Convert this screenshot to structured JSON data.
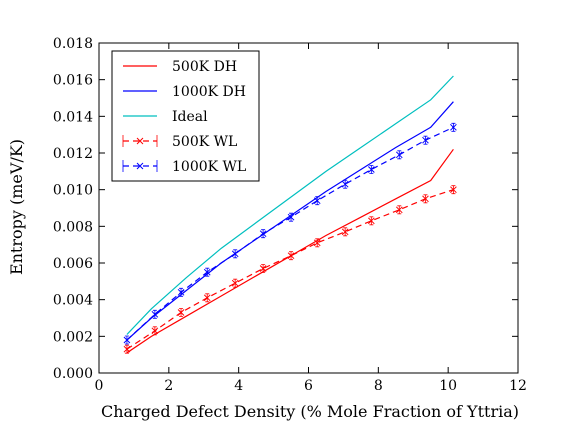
{
  "chart_data": {
    "type": "line",
    "title": "",
    "xlabel": "Charged Defect Density (% Mole Fraction of Yttria)",
    "ylabel": "Entropy (meV/K)",
    "xlim": [
      0,
      12
    ],
    "ylim": [
      0.0,
      0.018
    ],
    "xticks": [
      0,
      2,
      4,
      6,
      8,
      10,
      12
    ],
    "yticks": [
      0.0,
      0.002,
      0.004,
      0.006,
      0.008,
      0.01,
      0.012,
      0.014,
      0.016,
      0.018
    ],
    "xtick_labels": [
      "0",
      "2",
      "4",
      "6",
      "8",
      "10",
      "12"
    ],
    "ytick_labels": [
      "0.000",
      "0.002",
      "0.004",
      "0.006",
      "0.008",
      "0.010",
      "0.012",
      "0.014",
      "0.016",
      "0.018"
    ],
    "grid": false,
    "legend_position": "top-left",
    "series": [
      {
        "name": "500K DH",
        "color": "#ff0000",
        "style": "solid",
        "x": [
          0.8,
          1.5,
          2.5,
          3.5,
          4.5,
          5.5,
          6.5,
          7.5,
          8.5,
          9.5,
          10.15
        ],
        "y": [
          0.0011,
          0.002,
          0.0031,
          0.0042,
          0.0053,
          0.0064,
          0.0075,
          0.0085,
          0.0095,
          0.0105,
          0.0122
        ]
      },
      {
        "name": "1000K DH",
        "color": "#0000ff",
        "style": "solid",
        "x": [
          0.8,
          1.5,
          2.5,
          3.5,
          4.5,
          5.5,
          6.5,
          7.5,
          8.5,
          9.5,
          10.15
        ],
        "y": [
          0.0018,
          0.003,
          0.0045,
          0.006,
          0.0073,
          0.0086,
          0.0099,
          0.0111,
          0.0123,
          0.0134,
          0.0148
        ]
      },
      {
        "name": "Ideal",
        "color": "#00bfbf",
        "style": "solid",
        "x": [
          0.8,
          1.5,
          2.5,
          3.5,
          4.5,
          5.5,
          6.5,
          7.5,
          8.5,
          9.5,
          10.15
        ],
        "y": [
          0.0021,
          0.0035,
          0.0052,
          0.0068,
          0.0082,
          0.0096,
          0.011,
          0.0123,
          0.0136,
          0.0149,
          0.0162
        ]
      },
      {
        "name": "500K WL",
        "color": "#ff0000",
        "style": "dashed",
        "marker": "x",
        "x": [
          0.8,
          1.6,
          2.35,
          3.1,
          3.9,
          4.7,
          5.5,
          6.25,
          7.05,
          7.8,
          8.6,
          9.35,
          10.15
        ],
        "y": [
          0.0013,
          0.0023,
          0.0033,
          0.0041,
          0.0049,
          0.0057,
          0.0064,
          0.0071,
          0.0077,
          0.0083,
          0.0089,
          0.0095,
          0.01
        ]
      },
      {
        "name": "1000K WL",
        "color": "#0000ff",
        "style": "dashed",
        "marker": "x",
        "x": [
          0.8,
          1.6,
          2.35,
          3.1,
          3.9,
          4.7,
          5.5,
          6.25,
          7.05,
          7.8,
          8.6,
          9.35,
          10.15
        ],
        "y": [
          0.0018,
          0.0032,
          0.0044,
          0.0055,
          0.0065,
          0.0076,
          0.0085,
          0.0094,
          0.0103,
          0.0111,
          0.0119,
          0.0127,
          0.0134
        ]
      }
    ]
  }
}
